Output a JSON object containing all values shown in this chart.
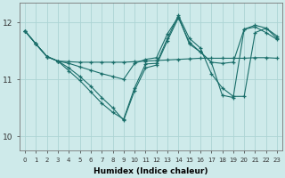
{
  "xlabel": "Humidex (Indice chaleur)",
  "bg_color": "#ceeaea",
  "grid_color": "#acd4d4",
  "line_color": "#1a6e6a",
  "xlim": [
    -0.5,
    23.5
  ],
  "ylim": [
    9.75,
    12.35
  ],
  "yticks": [
    10,
    11,
    12
  ],
  "xticks": [
    0,
    1,
    2,
    3,
    4,
    5,
    6,
    7,
    8,
    9,
    10,
    11,
    12,
    13,
    14,
    15,
    16,
    17,
    18,
    19,
    20,
    21,
    22,
    23
  ],
  "lines": [
    {
      "x": [
        0,
        1,
        2,
        3,
        4,
        5,
        6,
        7,
        8,
        9,
        10,
        11,
        12,
        13,
        14,
        15,
        16,
        17,
        18,
        19,
        20,
        21,
        22,
        23
      ],
      "y": [
        11.85,
        11.62,
        11.4,
        11.32,
        11.31,
        11.3,
        11.3,
        11.3,
        11.3,
        11.3,
        11.31,
        11.32,
        11.33,
        11.34,
        11.35,
        11.36,
        11.37,
        11.37,
        11.37,
        11.37,
        11.37,
        11.38,
        11.38,
        11.37
      ]
    },
    {
      "x": [
        0,
        1,
        2,
        3,
        4,
        5,
        6,
        7,
        8,
        9,
        10,
        11,
        12,
        13,
        14,
        15,
        16,
        17,
        18,
        19,
        20,
        21,
        22,
        23
      ],
      "y": [
        11.85,
        11.62,
        11.4,
        11.32,
        11.15,
        10.98,
        10.78,
        10.58,
        10.42,
        10.3,
        10.85,
        11.27,
        11.28,
        11.72,
        12.12,
        11.72,
        11.55,
        11.1,
        10.85,
        10.7,
        10.7,
        11.82,
        11.9,
        11.72
      ]
    },
    {
      "x": [
        0,
        1,
        2,
        3,
        4,
        5,
        6,
        7,
        8,
        9,
        10,
        11,
        12,
        13,
        14,
        15,
        16,
        17,
        18,
        19,
        20,
        21,
        22,
        23
      ],
      "y": [
        11.85,
        11.62,
        11.4,
        11.32,
        11.2,
        11.05,
        10.88,
        10.68,
        10.5,
        10.28,
        10.8,
        11.2,
        11.25,
        11.68,
        12.08,
        11.65,
        11.48,
        11.3,
        10.72,
        10.68,
        11.88,
        11.95,
        11.9,
        11.76
      ]
    },
    {
      "x": [
        0,
        1,
        2,
        3,
        4,
        5,
        6,
        7,
        8,
        9,
        10,
        11,
        12,
        13,
        14,
        15,
        16,
        17,
        18,
        19,
        20,
        21,
        22,
        23
      ],
      "y": [
        11.85,
        11.62,
        11.4,
        11.32,
        11.28,
        11.22,
        11.16,
        11.1,
        11.05,
        11.0,
        11.28,
        11.35,
        11.38,
        11.8,
        12.1,
        11.62,
        11.48,
        11.3,
        11.28,
        11.3,
        11.88,
        11.92,
        11.82,
        11.7
      ]
    }
  ]
}
